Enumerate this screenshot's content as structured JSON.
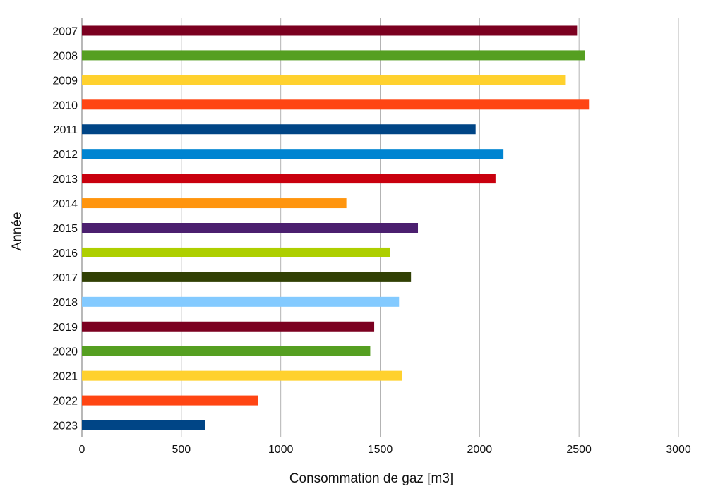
{
  "chart_data": {
    "type": "bar",
    "orientation": "horizontal",
    "title": "",
    "xlabel": "Consommation de gaz [m3]",
    "ylabel": "Année",
    "xlim": [
      0,
      3000
    ],
    "x_ticks": [
      "0",
      "500",
      "1000",
      "1500",
      "2000",
      "2500",
      "3000"
    ],
    "grid": "vertical",
    "legend": "none",
    "categories": [
      "2007",
      "2008",
      "2009",
      "2010",
      "2011",
      "2012",
      "2013",
      "2014",
      "2015",
      "2016",
      "2017",
      "2018",
      "2019",
      "2020",
      "2021",
      "2022",
      "2023"
    ],
    "values": [
      2490,
      2530,
      2430,
      2550,
      1980,
      2120,
      2080,
      1330,
      1690,
      1550,
      1655,
      1595,
      1470,
      1450,
      1610,
      885,
      620
    ],
    "colors": [
      "#7b0020",
      "#559f21",
      "#ffd12e",
      "#ff4513",
      "#004586",
      "#0084d1",
      "#c9000e",
      "#ff950e",
      "#4b1f6f",
      "#aecf00",
      "#314004",
      "#83caff",
      "#7b0020",
      "#559f21",
      "#ffd12e",
      "#ff4513",
      "#004586"
    ]
  }
}
